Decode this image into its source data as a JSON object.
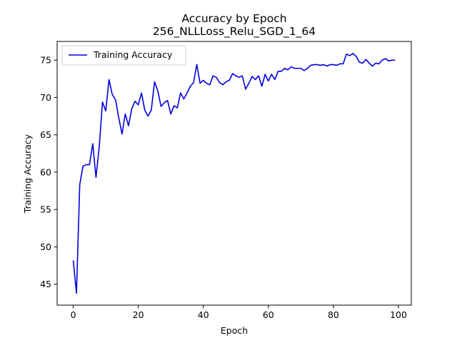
{
  "chart_data": {
    "type": "line",
    "title": "Accuracy by Epoch",
    "subtitle": "256_NLLLoss_Relu_SGD_1_64",
    "xlabel": "Epoch",
    "ylabel": "Training Accuracy",
    "xlim": [
      -4.95,
      103.95
    ],
    "ylim": [
      42.2,
      77.5
    ],
    "xticks": [
      0,
      20,
      40,
      60,
      80,
      100
    ],
    "yticks": [
      45,
      50,
      55,
      60,
      65,
      70,
      75
    ],
    "grid": false,
    "legend_position": "top-left",
    "series": [
      {
        "name": "Training Accuracy",
        "color": "#0000dd",
        "x": [
          0,
          1,
          2,
          3,
          4,
          5,
          6,
          7,
          8,
          9,
          10,
          11,
          12,
          13,
          14,
          15,
          16,
          17,
          18,
          19,
          20,
          21,
          22,
          23,
          24,
          25,
          26,
          27,
          28,
          29,
          30,
          31,
          32,
          33,
          34,
          35,
          36,
          37,
          38,
          39,
          40,
          41,
          42,
          43,
          44,
          45,
          46,
          47,
          48,
          49,
          50,
          51,
          52,
          53,
          54,
          55,
          56,
          57,
          58,
          59,
          60,
          61,
          62,
          63,
          64,
          65,
          66,
          67,
          68,
          69,
          70,
          71,
          72,
          73,
          74,
          75,
          76,
          77,
          78,
          79,
          80,
          81,
          82,
          83,
          84,
          85,
          86,
          87,
          88,
          89,
          90,
          91,
          92,
          93,
          94,
          95,
          96,
          97,
          98,
          99
        ],
        "y": [
          48.2,
          43.8,
          58.3,
          60.8,
          61.0,
          61.0,
          63.8,
          59.3,
          63.4,
          69.4,
          68.2,
          72.4,
          70.4,
          69.7,
          67.3,
          65.1,
          67.8,
          66.2,
          68.5,
          69.5,
          69.0,
          70.6,
          68.3,
          67.5,
          68.3,
          72.1,
          70.9,
          68.8,
          69.3,
          69.6,
          67.8,
          68.9,
          68.6,
          70.6,
          69.8,
          70.6,
          71.5,
          72.0,
          74.4,
          71.9,
          72.3,
          71.9,
          71.7,
          72.9,
          72.7,
          72.0,
          71.7,
          72.1,
          72.3,
          73.2,
          72.9,
          72.7,
          72.9,
          71.1,
          71.9,
          72.8,
          72.4,
          72.9,
          71.5,
          73.1,
          72.2,
          73.1,
          72.4,
          73.5,
          73.5,
          73.9,
          73.7,
          74.1,
          73.9,
          73.9,
          73.9,
          73.6,
          73.9,
          74.3,
          74.4,
          74.4,
          74.3,
          74.4,
          74.2,
          74.4,
          74.4,
          74.3,
          74.5,
          74.5,
          75.8,
          75.6,
          75.9,
          75.5,
          74.7,
          74.6,
          75.1,
          74.6,
          74.2,
          74.6,
          74.5,
          75.0,
          75.2,
          74.9,
          75.0,
          75.0
        ]
      }
    ]
  }
}
